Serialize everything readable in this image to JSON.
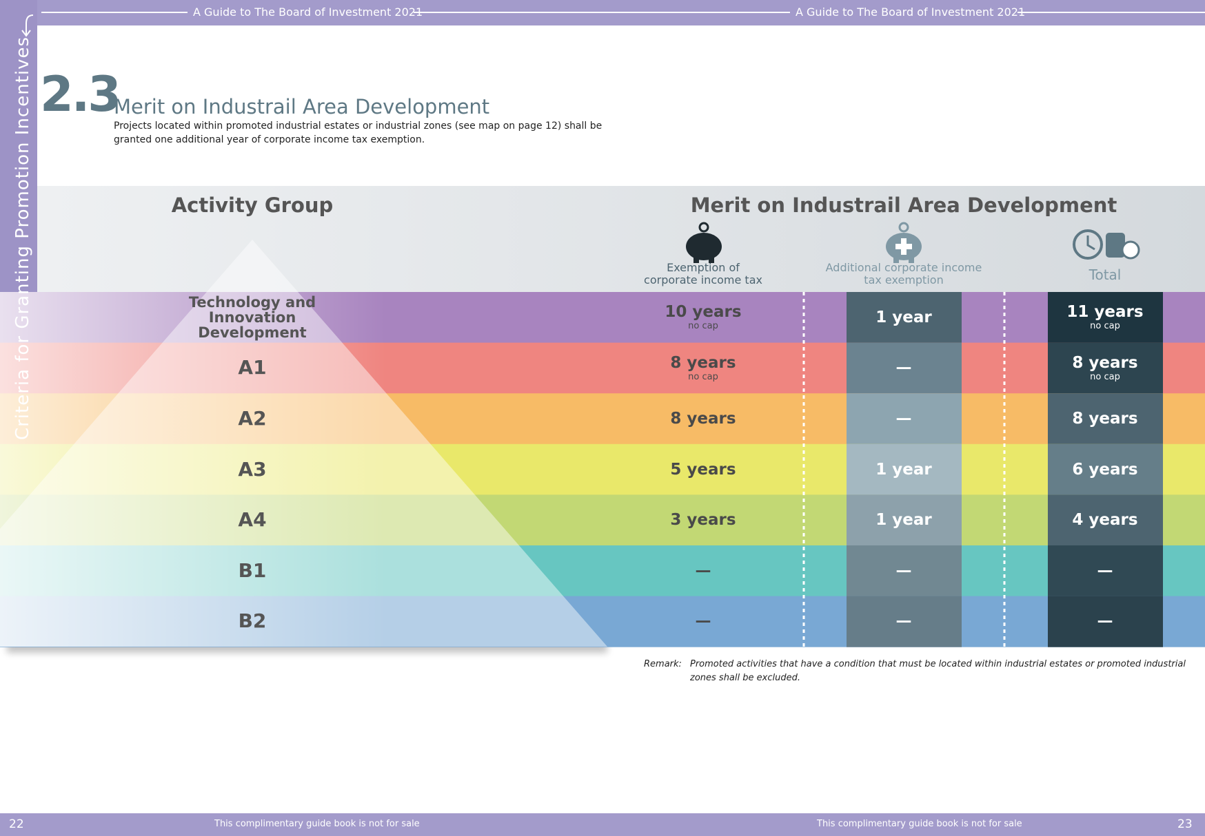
{
  "header": {
    "running_titles": [
      "A Guide to The Board of Investment 2021",
      "A Guide to The Board of Investment 2021"
    ]
  },
  "side_tab": "Criteria for Granting Promotion Incentives",
  "section": {
    "number": "2.3",
    "title": "Merit on Industrail Area Development",
    "description": [
      "Projects located within promoted industrial estates or industrial zones (see map on page 12) shall be",
      "granted one additional year of corporate income tax exemption."
    ]
  },
  "table": {
    "group_heading": "Activity Group",
    "merit_heading": "Merit on Industrail Area Development",
    "columns": [
      [
        "Exemption of",
        "corporate income tax"
      ],
      [
        "Additional corporate income",
        "tax exemption"
      ],
      [
        "Total"
      ]
    ],
    "rows": [
      {
        "group": "Technology and Innovation Development",
        "exemption": "10 years",
        "exemption_note": "no cap",
        "additional": "1 year",
        "total": "11 years",
        "total_note": "no cap"
      },
      {
        "group": "A1",
        "exemption": "8 years",
        "exemption_note": "no cap",
        "additional": "—",
        "total": "8 years",
        "total_note": "no cap"
      },
      {
        "group": "A2",
        "exemption": "8 years",
        "additional": "—",
        "total": "8 years"
      },
      {
        "group": "A3",
        "exemption": "5 years",
        "additional": "1 year",
        "total": "6 years"
      },
      {
        "group": "A4",
        "exemption": "3 years",
        "additional": "1 year",
        "total": "4 years"
      },
      {
        "group": "B1",
        "exemption": "—",
        "additional": "—",
        "total": "—"
      },
      {
        "group": "B2",
        "exemption": "—",
        "additional": "—",
        "total": "—"
      }
    ]
  },
  "remark": {
    "label": "Remark:",
    "text": [
      "Promoted activities that have a condition that must be located within industrial estates or promoted industrial",
      "zones shall be excluded."
    ]
  },
  "footer": {
    "left_page": "22",
    "left_note": "This complimentary guide book is not for sale",
    "right_note": "This complimentary guide book is not for sale",
    "right_page": "23"
  }
}
